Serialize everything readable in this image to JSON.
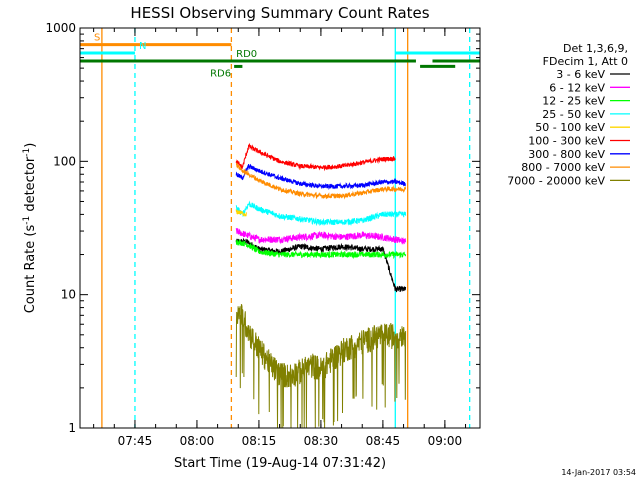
{
  "chart_data": {
    "type": "line",
    "title": "HESSI Observing Summary Count Rates",
    "xlabel": "Start Time (19-Aug-14 07:31:42)",
    "ylabel_main": "Count Rate (s",
    "ylabel_sup1": "-1",
    "ylabel_mid": " detector",
    "ylabel_sup2": "-1",
    "ylabel_end": ")",
    "xlim": [
      "07:31:42",
      "09:08:30"
    ],
    "ylim": [
      1,
      1000
    ],
    "yscale": "log",
    "x_ticks": [
      "07:45",
      "08:00",
      "08:15",
      "08:30",
      "08:45",
      "09:00"
    ],
    "y_ticks": [
      "1",
      "10",
      "100",
      "1000"
    ],
    "legend_position": "right",
    "legend_header": [
      "Det 1,3,6,9,",
      "FDecim 1, Att 0"
    ],
    "timestamp": "14-Jan-2017 03:54",
    "series": [
      {
        "name": "3 - 6 keV",
        "color": "#000000",
        "points": [
          [
            "08:09:30",
            25
          ],
          [
            "08:12:00",
            25
          ],
          [
            "08:15:00",
            22
          ],
          [
            "08:20:00",
            21
          ],
          [
            "08:25:00",
            23
          ],
          [
            "08:30:00",
            22
          ],
          [
            "08:35:00",
            23
          ],
          [
            "08:40:00",
            22
          ],
          [
            "08:45:00",
            22
          ],
          [
            "08:48:00",
            11
          ],
          [
            "08:50:30",
            11
          ]
        ]
      },
      {
        "name": "6 - 12 keV",
        "color": "#ff00ff",
        "points": [
          [
            "08:09:30",
            30
          ],
          [
            "08:12:00",
            28
          ],
          [
            "08:15:00",
            26
          ],
          [
            "08:20:00",
            26
          ],
          [
            "08:25:00",
            27
          ],
          [
            "08:30:00",
            28
          ],
          [
            "08:35:00",
            27
          ],
          [
            "08:40:00",
            28
          ],
          [
            "08:45:00",
            27
          ],
          [
            "08:48:00",
            26
          ],
          [
            "08:50:30",
            25
          ]
        ]
      },
      {
        "name": "12 - 25 keV",
        "color": "#00ff00",
        "points": [
          [
            "08:09:30",
            25
          ],
          [
            "08:12:00",
            24
          ],
          [
            "08:15:00",
            21
          ],
          [
            "08:20:00",
            20
          ],
          [
            "08:25:00",
            20
          ],
          [
            "08:30:00",
            20
          ],
          [
            "08:35:00",
            20
          ],
          [
            "08:40:00",
            20
          ],
          [
            "08:45:00",
            20
          ],
          [
            "08:48:00",
            20
          ],
          [
            "08:50:30",
            20
          ]
        ]
      },
      {
        "name": "25 - 50 keV",
        "color": "#00ffff",
        "points": [
          [
            "08:09:30",
            45
          ],
          [
            "08:11:00",
            40
          ],
          [
            "08:12:30",
            48
          ],
          [
            "08:15:00",
            44
          ],
          [
            "08:20:00",
            39
          ],
          [
            "08:25:00",
            37
          ],
          [
            "08:30:00",
            35
          ],
          [
            "08:35:00",
            35
          ],
          [
            "08:40:00",
            36
          ],
          [
            "08:45:00",
            40
          ],
          [
            "08:48:00",
            40
          ],
          [
            "08:50:30",
            40
          ]
        ]
      },
      {
        "name": "50 - 100 keV",
        "color": "#ffd700",
        "points": [
          [
            "08:09:30",
            42
          ],
          [
            "08:12:00",
            40
          ]
        ]
      },
      {
        "name": "100 - 300 keV",
        "color": "#ff0000",
        "points": [
          [
            "08:09:30",
            100
          ],
          [
            "08:11:00",
            90
          ],
          [
            "08:12:30",
            130
          ],
          [
            "08:15:00",
            118
          ],
          [
            "08:20:00",
            100
          ],
          [
            "08:25:00",
            92
          ],
          [
            "08:30:00",
            90
          ],
          [
            "08:35:00",
            92
          ],
          [
            "08:40:00",
            98
          ],
          [
            "08:45:00",
            104
          ],
          [
            "08:48:00",
            105
          ]
        ]
      },
      {
        "name": "300 - 800 keV",
        "color": "#0000ff",
        "points": [
          [
            "08:09:30",
            80
          ],
          [
            "08:11:00",
            75
          ],
          [
            "08:12:30",
            92
          ],
          [
            "08:15:00",
            85
          ],
          [
            "08:20:00",
            75
          ],
          [
            "08:25:00",
            68
          ],
          [
            "08:30:00",
            65
          ],
          [
            "08:35:00",
            65
          ],
          [
            "08:40:00",
            66
          ],
          [
            "08:45:00",
            70
          ],
          [
            "08:48:00",
            70
          ],
          [
            "08:50:30",
            68
          ]
        ]
      },
      {
        "name": "800 - 7000 keV",
        "color": "#ff8c00",
        "points": [
          [
            "08:09:30",
            95
          ],
          [
            "08:11:00",
            85
          ],
          [
            "08:12:30",
            80
          ],
          [
            "08:15:00",
            72
          ],
          [
            "08:20:00",
            62
          ],
          [
            "08:25:00",
            57
          ],
          [
            "08:30:00",
            55
          ],
          [
            "08:35:00",
            55
          ],
          [
            "08:40:00",
            58
          ],
          [
            "08:45:00",
            62
          ],
          [
            "08:48:00",
            62
          ],
          [
            "08:50:30",
            62
          ]
        ]
      },
      {
        "name": "7000 - 20000 keV",
        "color": "#808000",
        "points": [
          [
            "08:09:30",
            7.5
          ],
          [
            "08:11:00",
            7
          ],
          [
            "08:13:00",
            5
          ],
          [
            "08:15:00",
            4
          ],
          [
            "08:18:00",
            3
          ],
          [
            "08:20:00",
            2.6
          ],
          [
            "08:22:00",
            2.5
          ],
          [
            "08:25:00",
            2.7
          ],
          [
            "08:28:00",
            3
          ],
          [
            "08:30:00",
            2.8
          ],
          [
            "08:33:00",
            3.4
          ],
          [
            "08:36:00",
            4
          ],
          [
            "08:40:00",
            4.5
          ],
          [
            "08:44:00",
            5
          ],
          [
            "08:48:00",
            5
          ],
          [
            "08:50:30",
            5.2
          ]
        ]
      }
    ],
    "flags": [
      {
        "label": "S",
        "color": "#ff8c00",
        "start": "07:31:42",
        "end": "08:08:20",
        "level": 750
      },
      {
        "label": "N",
        "color": "#00ffff",
        "start": "07:31:42",
        "end": "07:45:00",
        "level": 650
      },
      {
        "label": "",
        "color": "#00ffff",
        "start": "08:48:00",
        "end": "09:08:30",
        "level": 650
      },
      {
        "label": "RD0",
        "color": "#007700",
        "start": "07:31:42",
        "end": "08:53:00",
        "level": 565
      },
      {
        "label": "",
        "color": "#007700",
        "start": "08:57:00",
        "end": "09:08:30",
        "level": 565
      },
      {
        "label": "RD6",
        "color": "#007700",
        "start": "08:09:00",
        "end": "08:11:00",
        "level": 515
      },
      {
        "label": "",
        "color": "#007700",
        "start": "08:54:00",
        "end": "09:02:30",
        "level": 515
      }
    ],
    "vlines": [
      {
        "time": "07:37:00",
        "color": "#ff8c00",
        "dash": false
      },
      {
        "time": "07:45:00",
        "color": "#00ffff",
        "dash": true
      },
      {
        "time": "08:08:20",
        "color": "#ff8c00",
        "dash": true
      },
      {
        "time": "08:48:00",
        "color": "#00ffff",
        "dash": false
      },
      {
        "time": "08:51:00",
        "color": "#ff8c00",
        "dash": false
      },
      {
        "time": "09:06:00",
        "color": "#00ffff",
        "dash": true
      }
    ]
  }
}
